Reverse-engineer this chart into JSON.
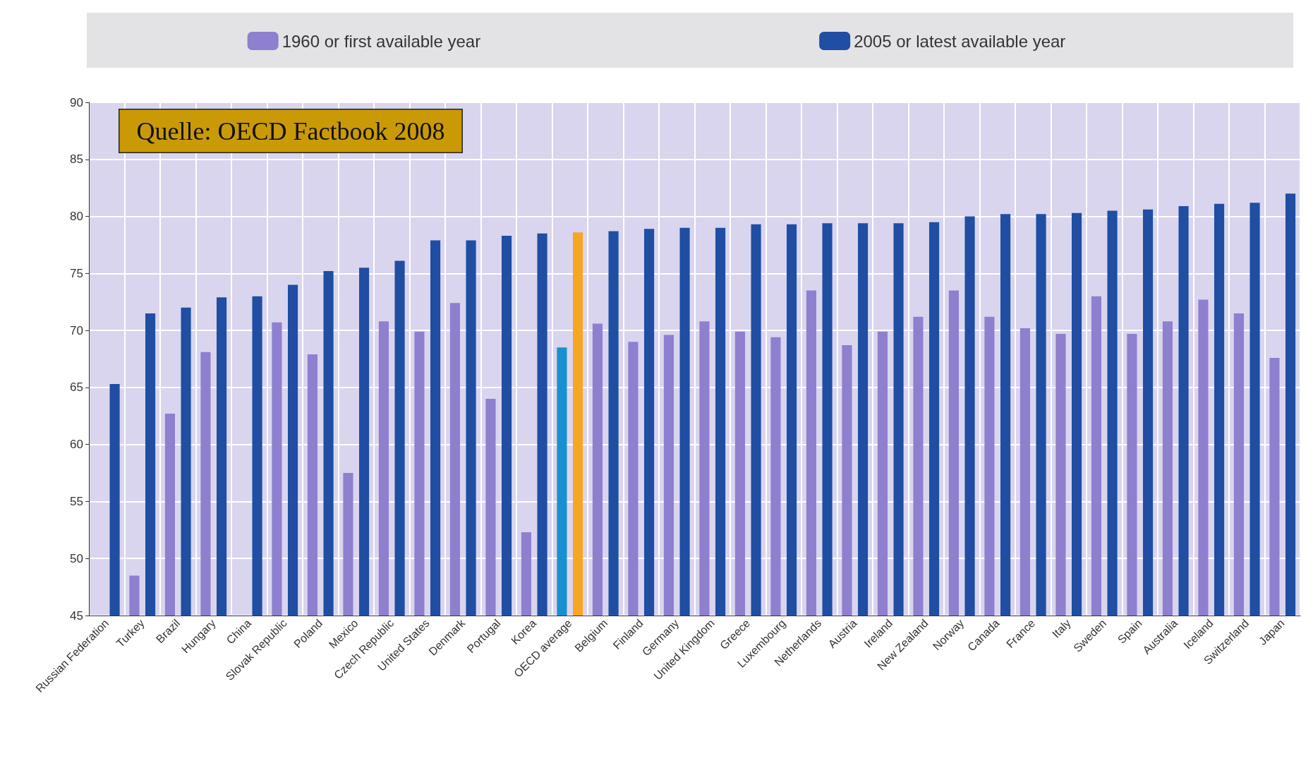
{
  "chart_data": {
    "type": "bar",
    "categories": [
      "Russian Federation",
      "Turkey",
      "Brazil",
      "Hungary",
      "China",
      "Slovak Republic",
      "Poland",
      "Mexico",
      "Czech Republic",
      "United States",
      "Denmark",
      "Portugal",
      "Korea",
      "OECD average",
      "Belgium",
      "Finland",
      "Germany",
      "United Kingdom",
      "Greece",
      "Luxembourg",
      "Netherlands",
      "Austria",
      "Ireland",
      "New Zealand",
      "Norway",
      "Canada",
      "France",
      "Italy",
      "Sweden",
      "Spain",
      "Australia",
      "Iceland",
      "Switzerland",
      "Japan"
    ],
    "series": [
      {
        "name": "1960 or first available year",
        "color": "#8f7fcf",
        "colors": [
          "#8f7fcf",
          "#8f7fcf",
          "#8f7fcf",
          "#8f7fcf",
          "#8f7fcf",
          "#8f7fcf",
          "#8f7fcf",
          "#8f7fcf",
          "#8f7fcf",
          "#8f7fcf",
          "#8f7fcf",
          "#8f7fcf",
          "#8f7fcf",
          "#1a8fd0",
          "#8f7fcf",
          "#8f7fcf",
          "#8f7fcf",
          "#8f7fcf",
          "#8f7fcf",
          "#8f7fcf",
          "#8f7fcf",
          "#8f7fcf",
          "#8f7fcf",
          "#8f7fcf",
          "#8f7fcf",
          "#8f7fcf",
          "#8f7fcf",
          "#8f7fcf",
          "#8f7fcf",
          "#8f7fcf",
          "#8f7fcf",
          "#8f7fcf",
          "#8f7fcf",
          "#8f7fcf"
        ],
        "values": [
          null,
          48.5,
          62.7,
          68.1,
          null,
          70.7,
          67.9,
          57.5,
          70.8,
          69.9,
          72.4,
          64.0,
          52.3,
          68.5,
          70.6,
          69.0,
          69.6,
          70.8,
          69.9,
          69.4,
          73.5,
          68.7,
          69.9,
          71.2,
          73.5,
          71.2,
          70.2,
          69.7,
          73.0,
          69.7,
          70.8,
          72.7,
          71.5,
          67.6
        ]
      },
      {
        "name": "2005 or latest available year",
        "color": "#1f4ea3",
        "colors": [
          "#1f4ea3",
          "#1f4ea3",
          "#1f4ea3",
          "#1f4ea3",
          "#1f4ea3",
          "#1f4ea3",
          "#1f4ea3",
          "#1f4ea3",
          "#1f4ea3",
          "#1f4ea3",
          "#1f4ea3",
          "#1f4ea3",
          "#1f4ea3",
          "#f5a623",
          "#1f4ea3",
          "#1f4ea3",
          "#1f4ea3",
          "#1f4ea3",
          "#1f4ea3",
          "#1f4ea3",
          "#1f4ea3",
          "#1f4ea3",
          "#1f4ea3",
          "#1f4ea3",
          "#1f4ea3",
          "#1f4ea3",
          "#1f4ea3",
          "#1f4ea3",
          "#1f4ea3",
          "#1f4ea3",
          "#1f4ea3",
          "#1f4ea3",
          "#1f4ea3",
          "#1f4ea3"
        ],
        "values": [
          65.3,
          71.5,
          72.0,
          72.9,
          73.0,
          74.0,
          75.2,
          75.5,
          76.1,
          77.9,
          77.9,
          78.3,
          78.5,
          78.6,
          78.7,
          78.9,
          79.0,
          79.0,
          79.3,
          79.3,
          79.4,
          79.4,
          79.4,
          79.5,
          80.0,
          80.2,
          80.2,
          80.3,
          80.5,
          80.6,
          80.9,
          81.1,
          81.2,
          82.0
        ]
      }
    ],
    "ylim": [
      45,
      90
    ],
    "yticks": [
      45,
      50,
      55,
      60,
      65,
      70,
      75,
      80,
      85,
      90
    ],
    "grid": true,
    "legend": "top",
    "annotations": [
      "Quelle: OECD Factbook 2008"
    ]
  }
}
